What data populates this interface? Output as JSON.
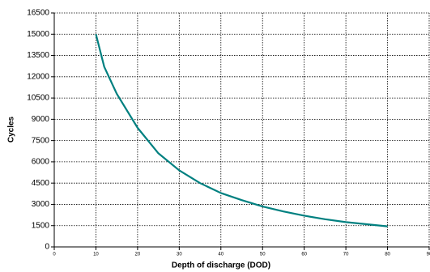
{
  "chart_data": {
    "type": "line",
    "x_label": "Depth of discharge (DOD)",
    "y_label": "Cycles",
    "series": [
      {
        "name": "Cycles",
        "color": "#008080",
        "x": [
          10,
          12,
          15,
          20,
          25,
          30,
          35,
          40,
          45,
          50,
          55,
          60,
          65,
          70,
          75,
          80
        ],
        "values": [
          15000,
          12700,
          10800,
          8400,
          6600,
          5400,
          4500,
          3800,
          3300,
          2850,
          2500,
          2200,
          1950,
          1750,
          1600,
          1450
        ]
      }
    ],
    "xlim": [
      0,
      90
    ],
    "xticks": [
      0,
      10,
      20,
      30,
      40,
      50,
      60,
      70,
      80,
      90
    ],
    "ylim": [
      0,
      16500
    ],
    "yticks": [
      0,
      1500,
      3000,
      4500,
      6000,
      7500,
      9000,
      10500,
      12000,
      13500,
      15000,
      16500
    ],
    "grid": true
  }
}
